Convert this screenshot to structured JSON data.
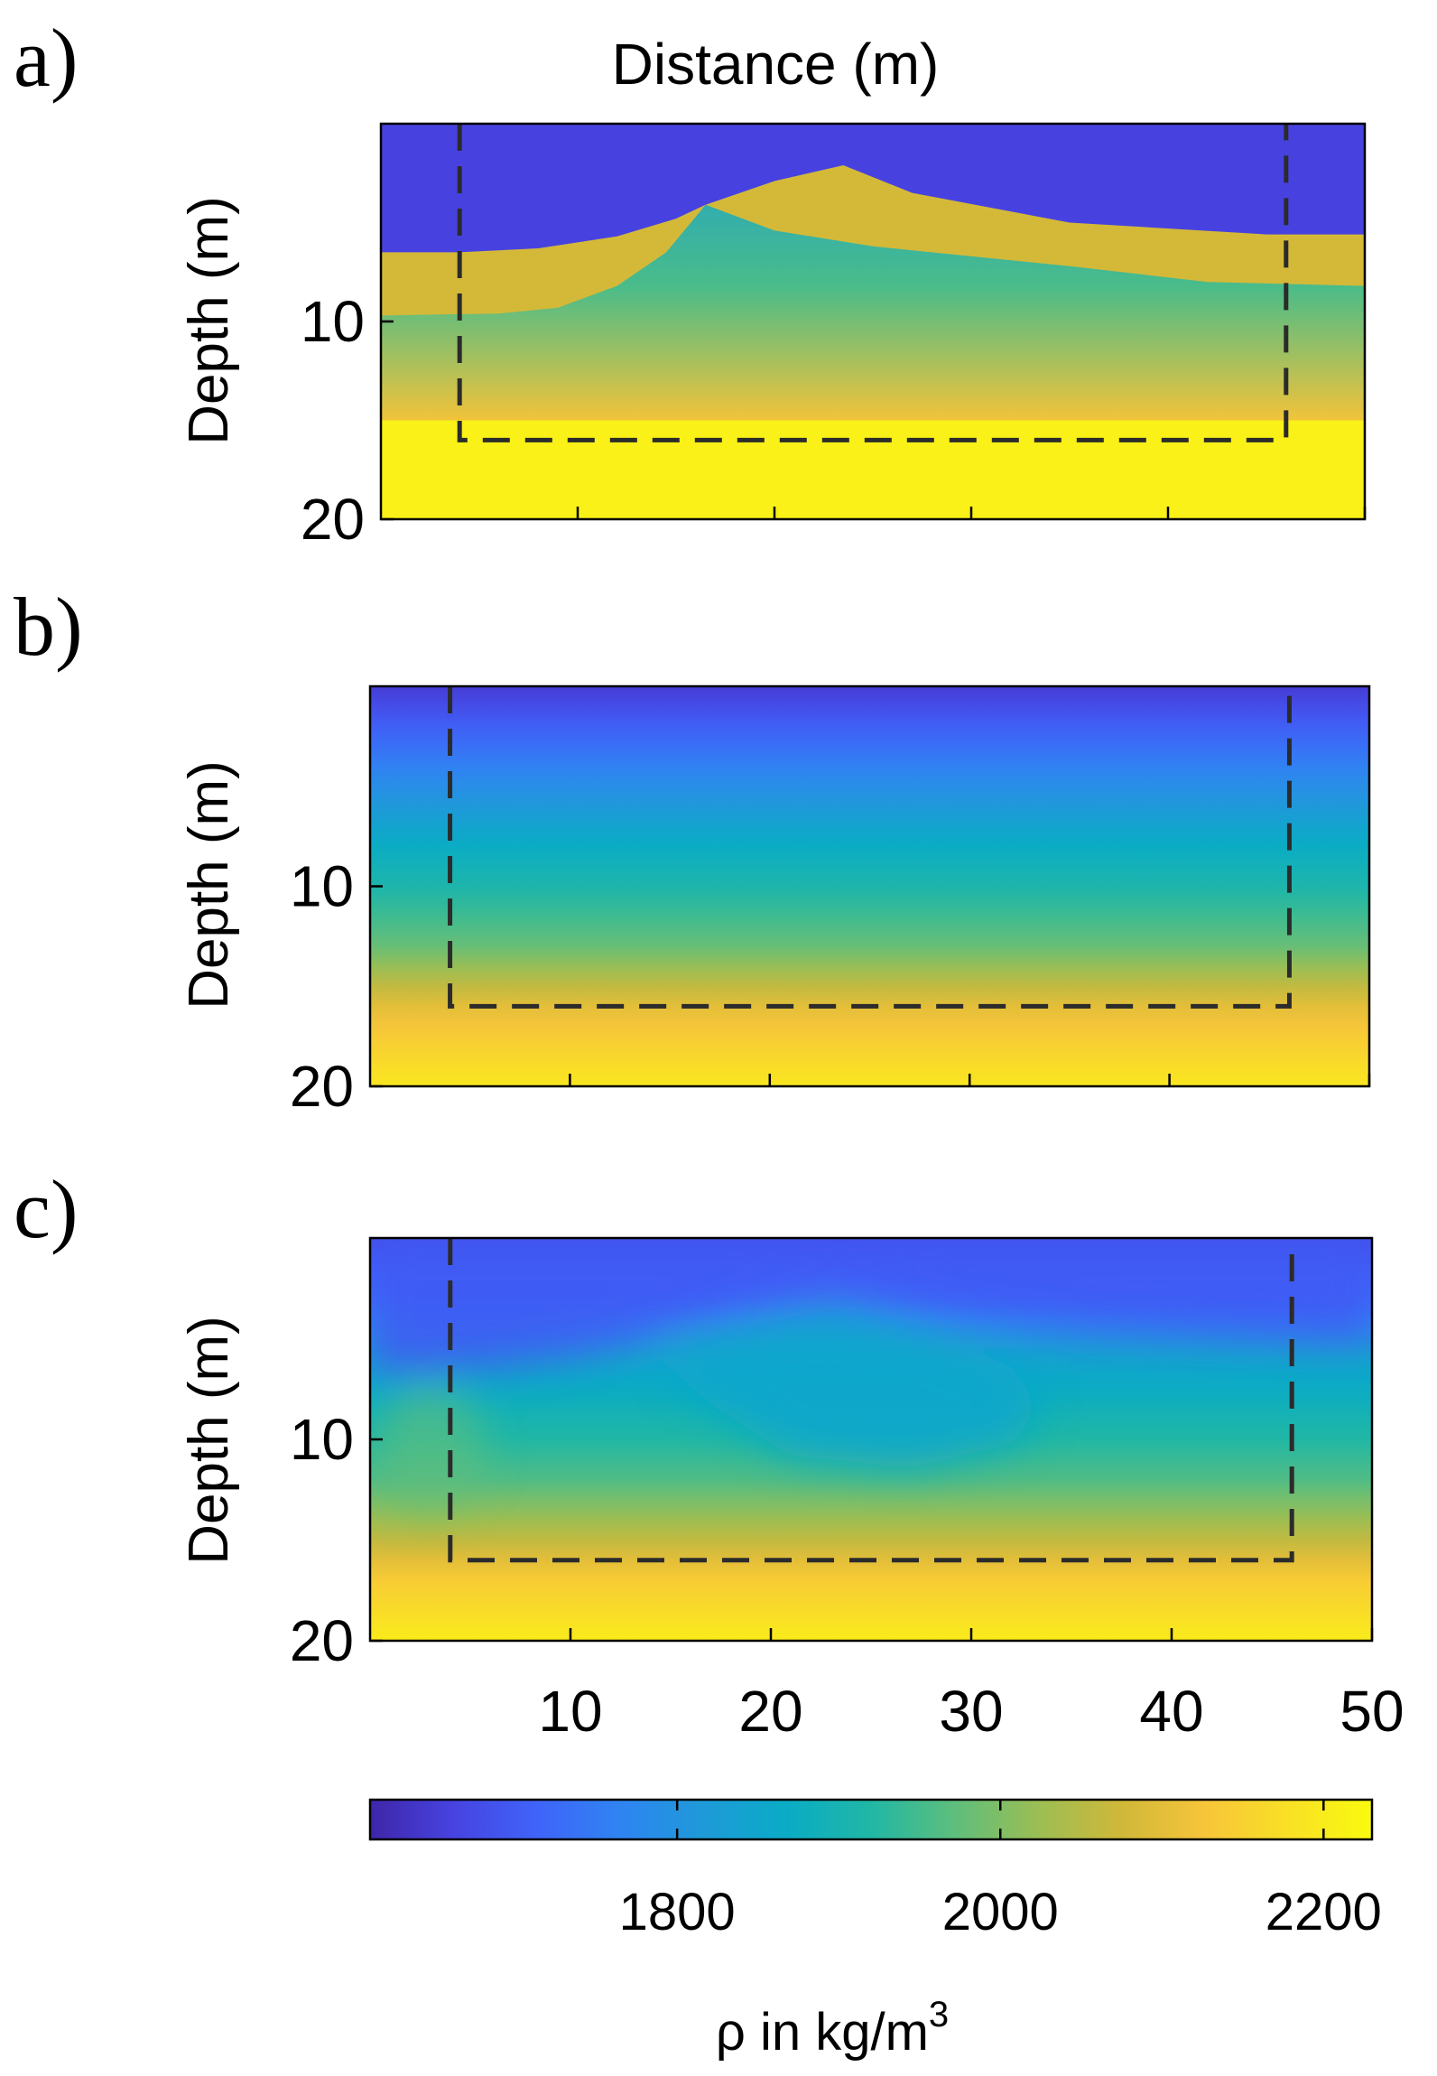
{
  "chart_data": {
    "type": "heatmap",
    "title": "Distance (m)",
    "xlabel": "",
    "ylabel": "Depth (m)",
    "xlim": [
      0,
      50
    ],
    "ylim": [
      0,
      20
    ],
    "y_reversed": true,
    "x_ticks": [
      10,
      20,
      30,
      40,
      50
    ],
    "y_ticks": [
      10,
      20
    ],
    "dashed_region": {
      "x": [
        4,
        46
      ],
      "y_top": 0,
      "y_bottom": 16
    },
    "panels": [
      {
        "label": "a)",
        "kind": "true-model",
        "layers": [
          {
            "name": "upper",
            "density": 1660,
            "top_boundary": [
              [
                0,
                0
              ],
              [
                50,
                0
              ]
            ],
            "bottom_boundary": [
              [
                0,
                6.5
              ],
              [
                4,
                6.5
              ],
              [
                8,
                6.3
              ],
              [
                12,
                5.7
              ],
              [
                15,
                4.8
              ],
              [
                16.5,
                4.1
              ],
              [
                20,
                2.9
              ],
              [
                23.5,
                2.1
              ],
              [
                27,
                3.5
              ],
              [
                35,
                5.0
              ],
              [
                45,
                5.6
              ],
              [
                50,
                5.6
              ]
            ]
          },
          {
            "name": "wedge",
            "density": 2080,
            "bottom_boundary": [
              [
                0,
                9.7
              ],
              [
                6,
                9.6
              ],
              [
                9,
                9.3
              ],
              [
                12,
                8.2
              ],
              [
                14.5,
                6.5
              ],
              [
                16.5,
                4.1
              ],
              [
                20,
                5.4
              ],
              [
                25,
                6.2
              ],
              [
                35,
                7.2
              ],
              [
                42,
                8.0
              ],
              [
                50,
                8.2
              ]
            ]
          },
          {
            "name": "gradient",
            "density_top": 1830,
            "density_bottom": 2120,
            "bottom_depth": 15
          },
          {
            "name": "halfspace",
            "density": 2210
          }
        ]
      },
      {
        "label": "b)",
        "kind": "initial-model",
        "density_profile": [
          [
            0,
            1650
          ],
          [
            4,
            1760
          ],
          [
            8,
            1870
          ],
          [
            10,
            1910
          ],
          [
            13,
            1980
          ],
          [
            16,
            2100
          ],
          [
            18,
            2150
          ],
          [
            20,
            2190
          ]
        ]
      },
      {
        "label": "c)",
        "kind": "inverted-model",
        "density_profile": [
          [
            0,
            1680
          ],
          [
            3,
            1730
          ],
          [
            6,
            1840
          ],
          [
            9,
            1900
          ],
          [
            12,
            1960
          ],
          [
            15,
            2060
          ],
          [
            17,
            2140
          ],
          [
            20,
            2200
          ]
        ],
        "features": [
          {
            "name": "wedge-low",
            "density": 1850,
            "x_range": [
              15,
              34
            ],
            "depth_range": [
              4,
              11.5
            ]
          },
          {
            "name": "upper-low",
            "density": 1700,
            "x_range": [
              0,
              50
            ],
            "depth_range": [
              0,
              5
            ]
          }
        ]
      }
    ],
    "colorbar": {
      "label_prefix": "ρ in kg/m",
      "label_superscript": "3",
      "range": [
        1610,
        2230
      ],
      "ticks": [
        1800,
        2000,
        2200
      ],
      "colormap": "parula"
    }
  },
  "colors": {
    "parula": [
      "#3e26a8",
      "#4743e1",
      "#3f64f9",
      "#2f84f2",
      "#1e9ad8",
      "#0aacc5",
      "#21b7a5",
      "#5ebe7c",
      "#9bbe54",
      "#d0b839",
      "#f7c53a",
      "#f9e025",
      "#f9fb0e"
    ],
    "frame": "#000000",
    "dash": "#2b2b2b"
  }
}
